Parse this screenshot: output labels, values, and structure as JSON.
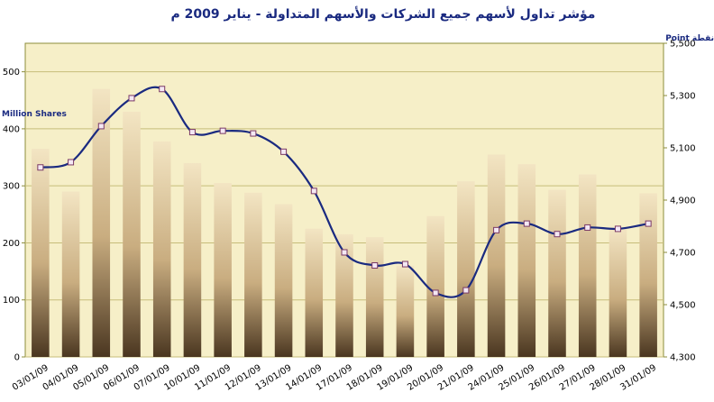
{
  "chart_data": {
    "type": "bar",
    "title": "مؤشر تداول لأسهم جميع الشركات والأسهم المتداولة - يناير 2009 م",
    "ylabel": "Million Shares",
    "y2label": "Point نقطة",
    "categories": [
      "03/01/09",
      "04/01/09",
      "05/01/09",
      "06/01/09",
      "07/01/09",
      "10/01/09",
      "11/01/09",
      "12/01/09",
      "13/01/09",
      "14/01/09",
      "17/01/09",
      "18/01/09",
      "19/01/09",
      "20/01/09",
      "21/01/09",
      "24/01/09",
      "25/01/09",
      "26/01/09",
      "27/01/09",
      "28/01/09",
      "31/01/09"
    ],
    "series": [
      {
        "name": "",
        "type": "bar",
        "axis": "left",
        "values": [
          365,
          290,
          470,
          430,
          378,
          340,
          305,
          288,
          268,
          225,
          215,
          210,
          160,
          247,
          308,
          355,
          338,
          293,
          320,
          225,
          287
        ]
      },
      {
        "name": "",
        "type": "line",
        "axis": "right",
        "values": [
          5025,
          5045,
          5183,
          5290,
          5325,
          5160,
          5165,
          5155,
          5085,
          4935,
          4700,
          4650,
          4655,
          4545,
          4555,
          4785,
          4810,
          4770,
          4795,
          4790,
          4810
        ]
      }
    ],
    "ylim": [
      0,
      550
    ],
    "y2lim": [
      4300,
      5500
    ],
    "yticks": [
      "0",
      "100",
      "200",
      "300",
      "400",
      "500"
    ],
    "y2ticks": [
      "4,300",
      "4,500",
      "4,700",
      "4,900",
      "5,100",
      "5,300",
      "5,500"
    ],
    "colors": {
      "plot_bg": "#f6efc8",
      "border": "#8c8c3a",
      "grid": "#c7bd7a",
      "bar_light": "#f2e2bd",
      "bar_dark": "#4a3620",
      "line": "#1a2a80",
      "marker_fill": "#f4e8f4",
      "marker_stroke": "#7a3a66"
    }
  }
}
